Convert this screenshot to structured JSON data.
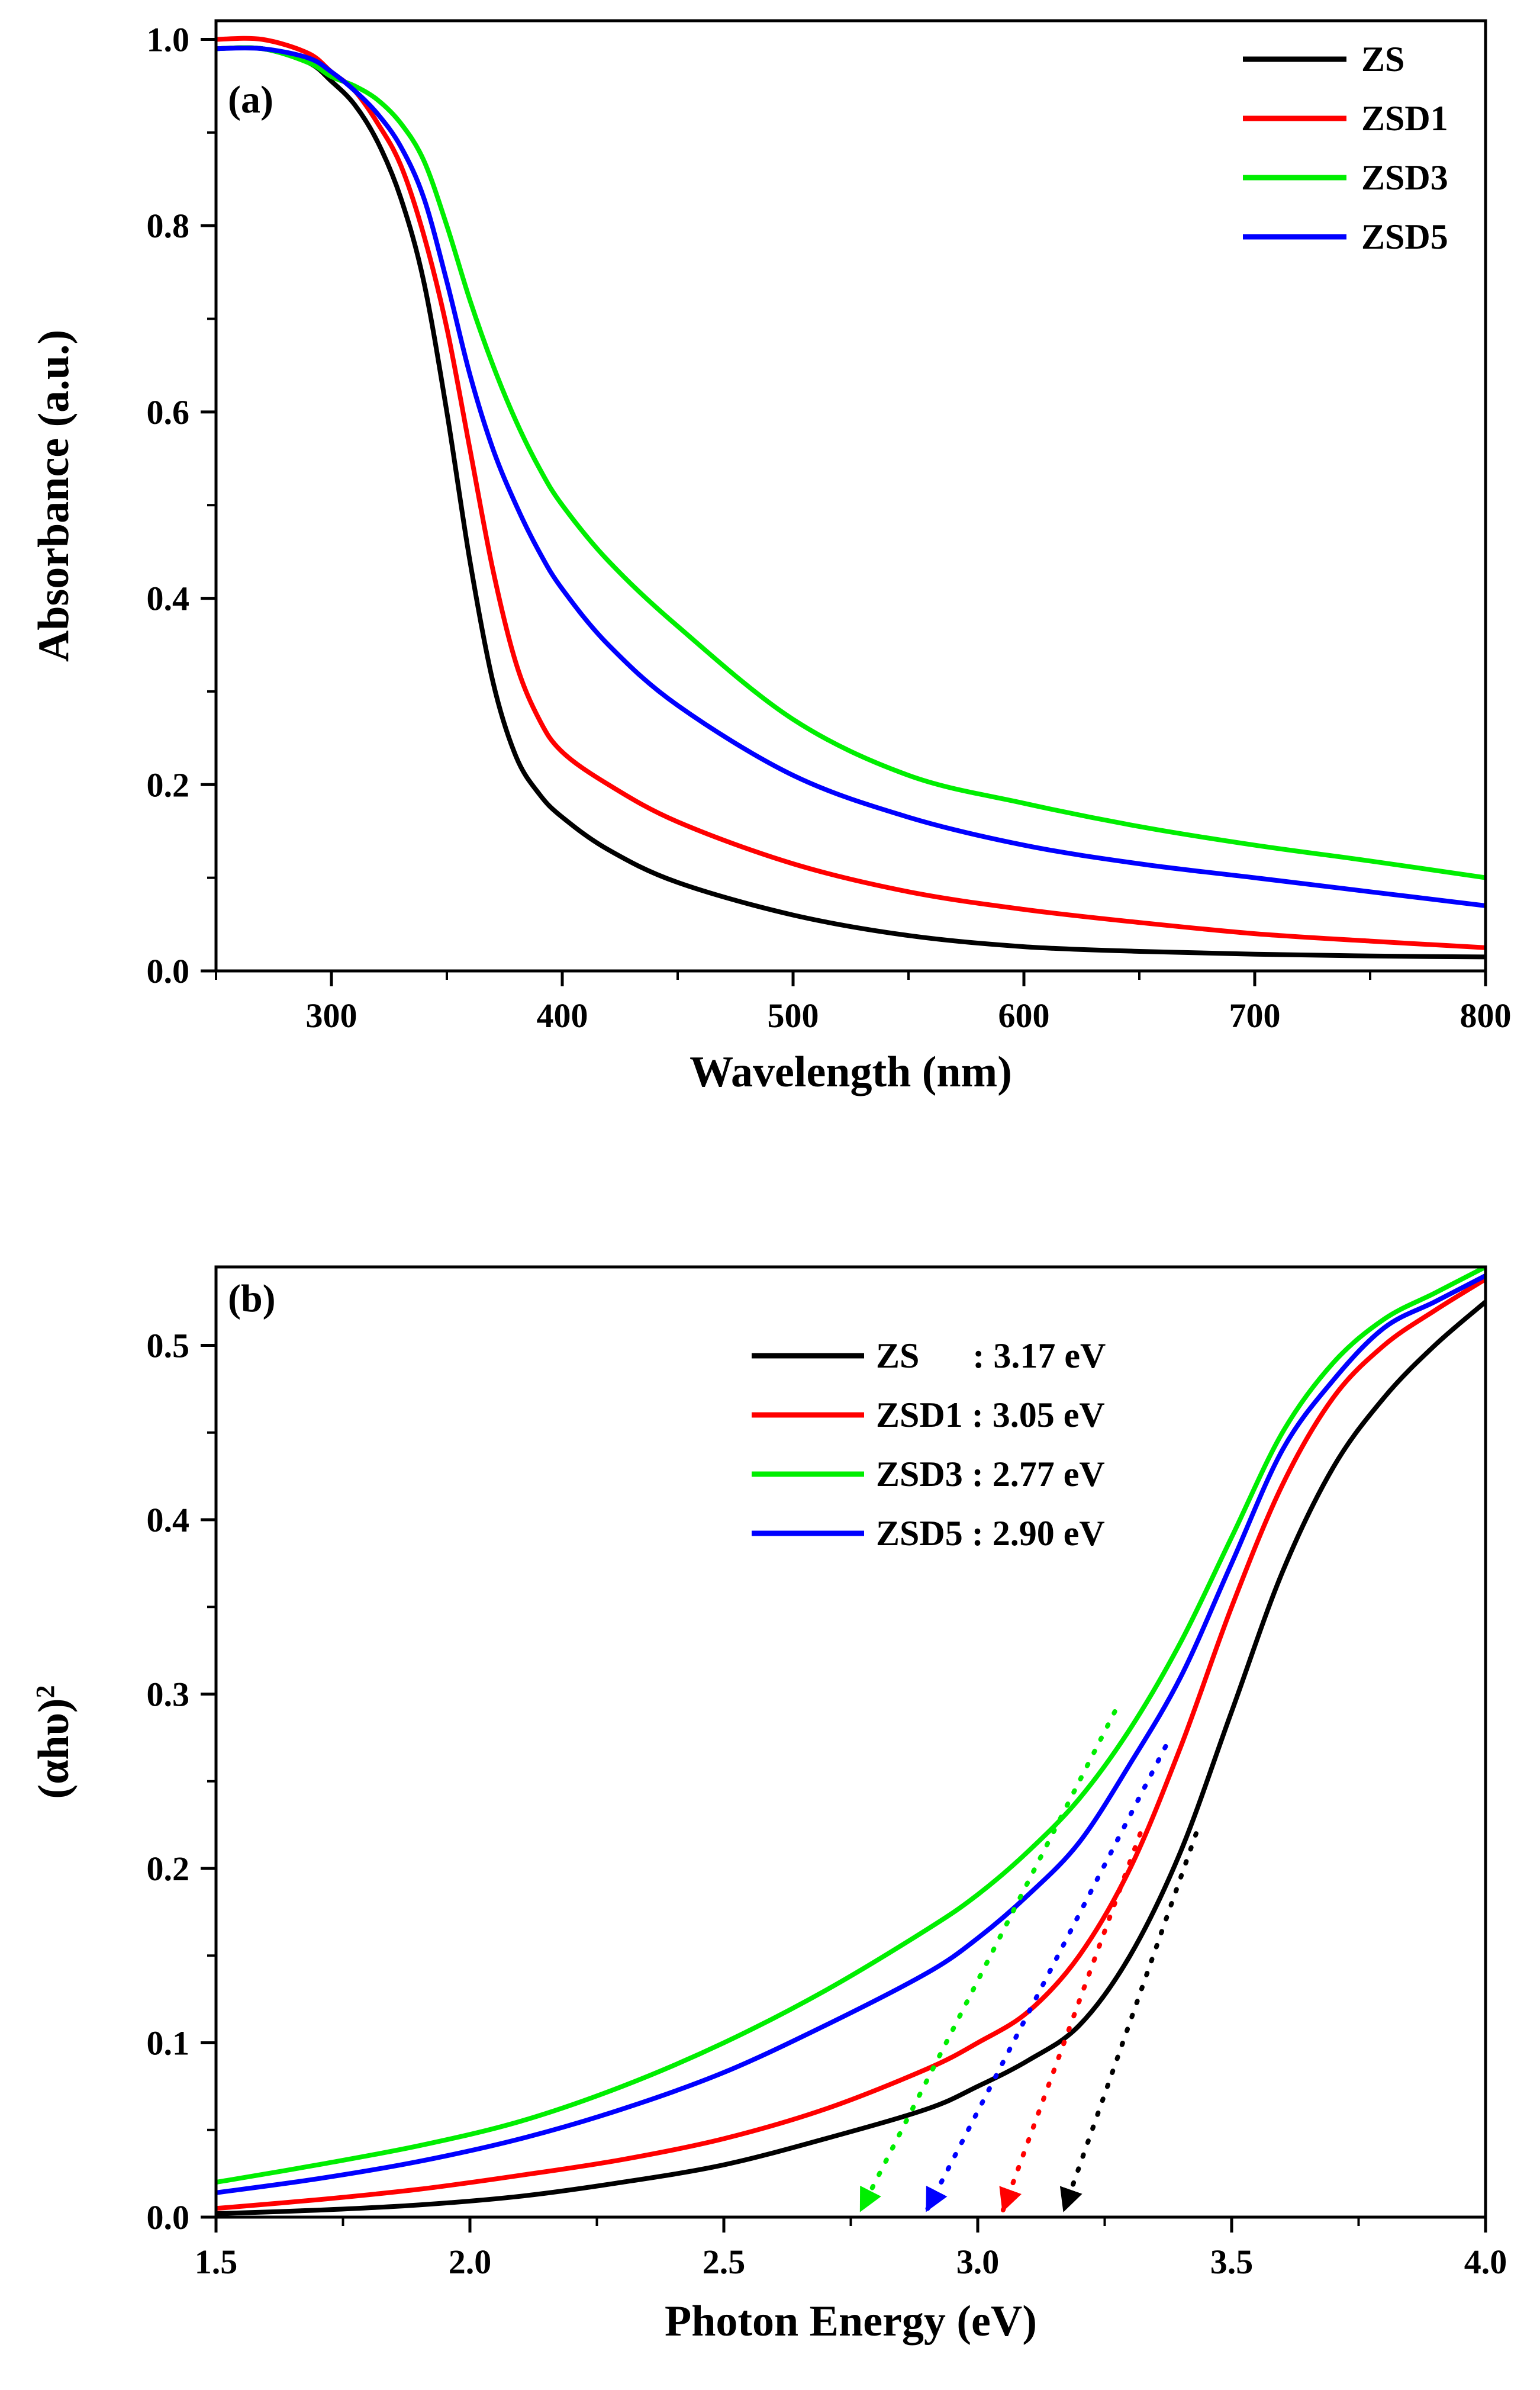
{
  "colors": {
    "ZS": "#000000",
    "ZSD1": "#ff0000",
    "ZSD3": "#00ee00",
    "ZSD5": "#0000ff"
  },
  "chart_data": [
    {
      "type": "line",
      "panel_label": "(a)",
      "xlabel": "Wavelength (nm)",
      "ylabel": "Absorbance (a.u.)",
      "xlim": [
        250,
        800
      ],
      "ylim": [
        0.0,
        1.02
      ],
      "xticks": [
        300,
        400,
        500,
        600,
        700,
        800
      ],
      "xtick_labels": [
        "300",
        "400",
        "500",
        "600",
        "700",
        "800"
      ],
      "yticks": [
        0.0,
        0.2,
        0.4,
        0.6,
        0.8,
        1.0
      ],
      "ytick_labels": [
        "0.0",
        "0.2",
        "0.4",
        "0.6",
        "0.8",
        "1.0"
      ],
      "legend_position": "top-right",
      "series": [
        {
          "name": "ZS",
          "legend": "ZS",
          "color_key": "ZS",
          "x": [
            250,
            270,
            290,
            300,
            310,
            320,
            330,
            340,
            350,
            360,
            370,
            380,
            390,
            400,
            420,
            450,
            500,
            550,
            600,
            650,
            700,
            750,
            800
          ],
          "y": [
            0.99,
            0.99,
            0.975,
            0.955,
            0.93,
            0.89,
            0.83,
            0.74,
            0.6,
            0.44,
            0.31,
            0.23,
            0.19,
            0.165,
            0.13,
            0.095,
            0.06,
            0.038,
            0.026,
            0.021,
            0.018,
            0.016,
            0.015
          ]
        },
        {
          "name": "ZSD1",
          "legend": "ZSD1",
          "color_key": "ZSD1",
          "x": [
            250,
            270,
            290,
            300,
            310,
            320,
            330,
            340,
            350,
            360,
            370,
            380,
            390,
            400,
            420,
            450,
            500,
            550,
            600,
            650,
            700,
            750,
            800
          ],
          "y": [
            1.0,
            1.0,
            0.985,
            0.965,
            0.945,
            0.91,
            0.865,
            0.79,
            0.69,
            0.56,
            0.43,
            0.33,
            0.27,
            0.235,
            0.2,
            0.16,
            0.115,
            0.085,
            0.066,
            0.052,
            0.04,
            0.032,
            0.025
          ]
        },
        {
          "name": "ZSD3",
          "legend": "ZSD3",
          "color_key": "ZSD3",
          "x": [
            250,
            270,
            290,
            300,
            310,
            320,
            330,
            340,
            350,
            360,
            370,
            380,
            390,
            400,
            420,
            450,
            500,
            550,
            600,
            650,
            700,
            750,
            800
          ],
          "y": [
            0.99,
            0.99,
            0.975,
            0.96,
            0.95,
            0.935,
            0.91,
            0.87,
            0.8,
            0.72,
            0.65,
            0.59,
            0.54,
            0.5,
            0.44,
            0.37,
            0.27,
            0.21,
            0.18,
            0.155,
            0.135,
            0.118,
            0.1
          ]
        },
        {
          "name": "ZSD5",
          "legend": "ZSD5",
          "color_key": "ZSD5",
          "x": [
            250,
            270,
            290,
            300,
            310,
            320,
            330,
            340,
            350,
            360,
            370,
            380,
            390,
            400,
            420,
            450,
            500,
            550,
            600,
            650,
            700,
            750,
            800
          ],
          "y": [
            0.99,
            0.99,
            0.98,
            0.965,
            0.945,
            0.92,
            0.885,
            0.83,
            0.74,
            0.64,
            0.56,
            0.5,
            0.45,
            0.41,
            0.35,
            0.285,
            0.21,
            0.165,
            0.135,
            0.115,
            0.1,
            0.085,
            0.07
          ]
        }
      ]
    },
    {
      "type": "line",
      "panel_label": "(b)",
      "xlabel": "Photon Energy (eV)",
      "ylabel": "(αhυ)",
      "ylabel_superscript": "2",
      "xlim": [
        1.5,
        4.0
      ],
      "ylim": [
        0.0,
        0.545
      ],
      "xticks": [
        1.5,
        2.0,
        2.5,
        3.0,
        3.5,
        4.0
      ],
      "xtick_labels": [
        "1.5",
        "2.0",
        "2.5",
        "3.0",
        "3.5",
        "4.0"
      ],
      "yticks": [
        0.0,
        0.1,
        0.2,
        0.3,
        0.4,
        0.5
      ],
      "ytick_labels": [
        "0.0",
        "0.1",
        "0.2",
        "0.3",
        "0.4",
        "0.5"
      ],
      "legend_position": "top-right",
      "series": [
        {
          "name": "ZS",
          "legend": "ZS      : 3.17 eV",
          "band_gap_eV": 3.17,
          "color_key": "ZS",
          "x": [
            1.5,
            1.7,
            1.9,
            2.1,
            2.3,
            2.5,
            2.7,
            2.9,
            3.0,
            3.1,
            3.2,
            3.3,
            3.4,
            3.5,
            3.6,
            3.7,
            3.8,
            3.9,
            4.0
          ],
          "y": [
            0.002,
            0.004,
            0.007,
            0.012,
            0.02,
            0.03,
            0.045,
            0.062,
            0.075,
            0.09,
            0.11,
            0.15,
            0.21,
            0.29,
            0.37,
            0.43,
            0.47,
            0.5,
            0.525
          ],
          "tangent": {
            "from": [
              3.17,
              0.0
            ],
            "to": [
              3.43,
              0.22
            ]
          }
        },
        {
          "name": "ZSD1",
          "legend": "ZSD1 : 3.05 eV",
          "band_gap_eV": 3.05,
          "color_key": "ZSD1",
          "x": [
            1.5,
            1.7,
            1.9,
            2.1,
            2.3,
            2.5,
            2.7,
            2.9,
            3.0,
            3.1,
            3.2,
            3.3,
            3.4,
            3.5,
            3.6,
            3.7,
            3.8,
            3.9,
            4.0
          ],
          "y": [
            0.005,
            0.01,
            0.016,
            0.024,
            0.033,
            0.045,
            0.062,
            0.085,
            0.1,
            0.118,
            0.15,
            0.2,
            0.27,
            0.35,
            0.42,
            0.47,
            0.5,
            0.52,
            0.538
          ],
          "tangent": {
            "from": [
              3.05,
              0.0
            ],
            "to": [
              3.32,
              0.22
            ]
          }
        },
        {
          "name": "ZSD3",
          "legend": "ZSD3 : 2.77 eV",
          "band_gap_eV": 2.77,
          "color_key": "ZSD3",
          "x": [
            1.5,
            1.7,
            1.9,
            2.1,
            2.3,
            2.5,
            2.7,
            2.9,
            3.0,
            3.1,
            3.2,
            3.3,
            3.4,
            3.5,
            3.6,
            3.7,
            3.8,
            3.9,
            4.0
          ],
          "y": [
            0.02,
            0.03,
            0.041,
            0.055,
            0.075,
            0.1,
            0.13,
            0.165,
            0.185,
            0.21,
            0.24,
            0.28,
            0.33,
            0.39,
            0.45,
            0.49,
            0.515,
            0.53,
            0.545
          ],
          "tangent": {
            "from": [
              2.77,
              0.0
            ],
            "to": [
              3.27,
              0.29
            ]
          }
        },
        {
          "name": "ZSD5",
          "legend": "ZSD5 : 2.90 eV",
          "band_gap_eV": 2.9,
          "color_key": "ZSD5",
          "x": [
            1.5,
            1.7,
            1.9,
            2.1,
            2.3,
            2.5,
            2.7,
            2.9,
            3.0,
            3.1,
            3.2,
            3.3,
            3.4,
            3.5,
            3.6,
            3.7,
            3.8,
            3.9,
            4.0
          ],
          "y": [
            0.014,
            0.022,
            0.032,
            0.045,
            0.062,
            0.083,
            0.11,
            0.14,
            0.16,
            0.185,
            0.215,
            0.26,
            0.31,
            0.375,
            0.44,
            0.48,
            0.51,
            0.525,
            0.54
          ],
          "tangent": {
            "from": [
              2.9,
              0.0
            ],
            "to": [
              3.37,
              0.27
            ]
          }
        }
      ]
    }
  ]
}
